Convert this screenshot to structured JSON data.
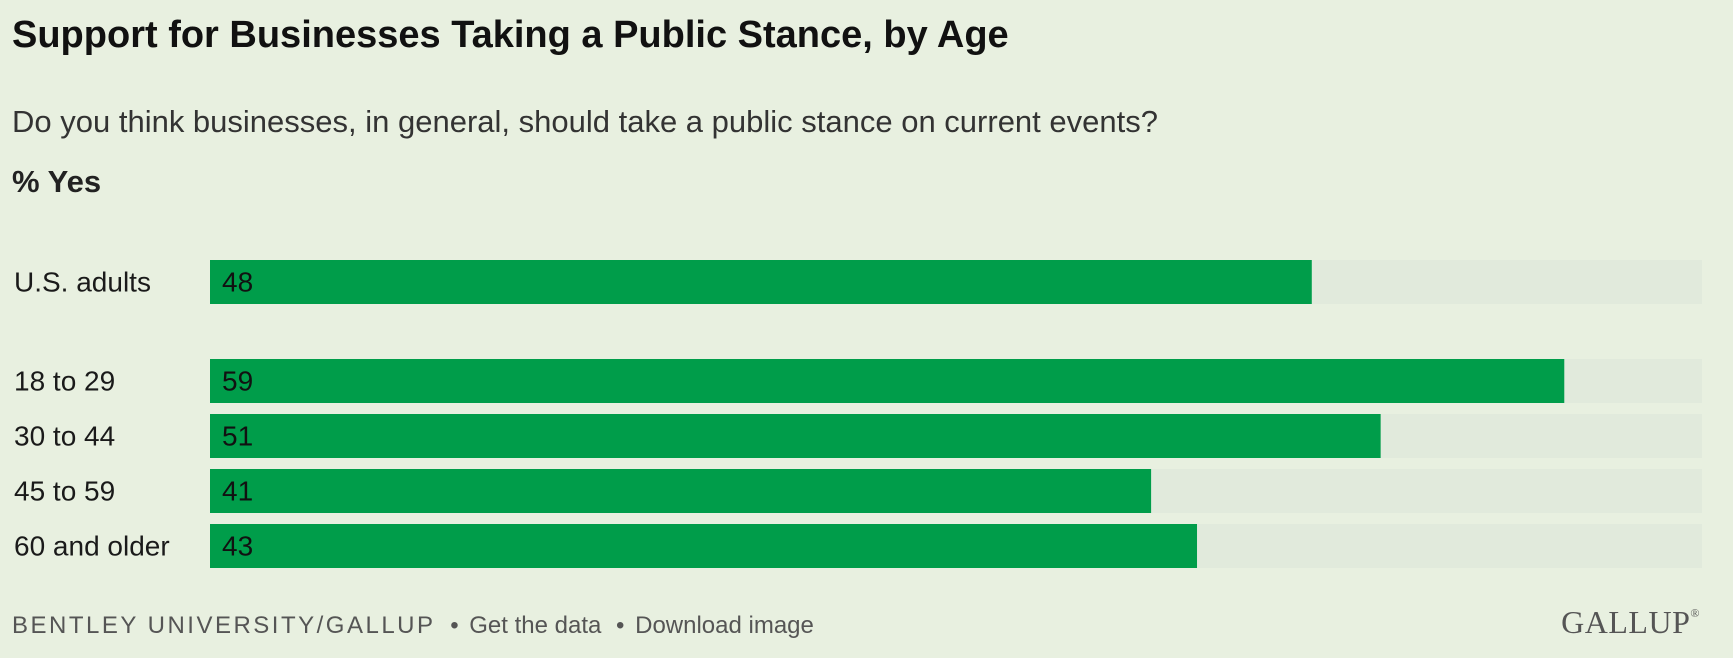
{
  "title": "Support for Businesses Taking a Public Stance, by Age",
  "subtitle": "Do you think businesses, in general, should take a public stance on current events?",
  "measure_label": "% Yes",
  "colors": {
    "bar": "#009d4a",
    "track": "#e1eadc",
    "background": "#e8f0e0",
    "label_text": "#1a1a1a"
  },
  "chart_data": {
    "type": "bar",
    "orientation": "horizontal",
    "categories": [
      "U.S. adults",
      "18 to 29",
      "30 to 44",
      "45 to 59",
      "60 and older"
    ],
    "values": [
      48,
      59,
      51,
      41,
      43
    ],
    "xlim": [
      0,
      65
    ],
    "grid": false,
    "legend": "none"
  },
  "footer": {
    "source": "BENTLEY UNIVERSITY/GALLUP",
    "separator": "•",
    "get_data": "Get the data",
    "download": "Download image"
  },
  "logo": {
    "text": "GALLUP",
    "mark": "®"
  }
}
